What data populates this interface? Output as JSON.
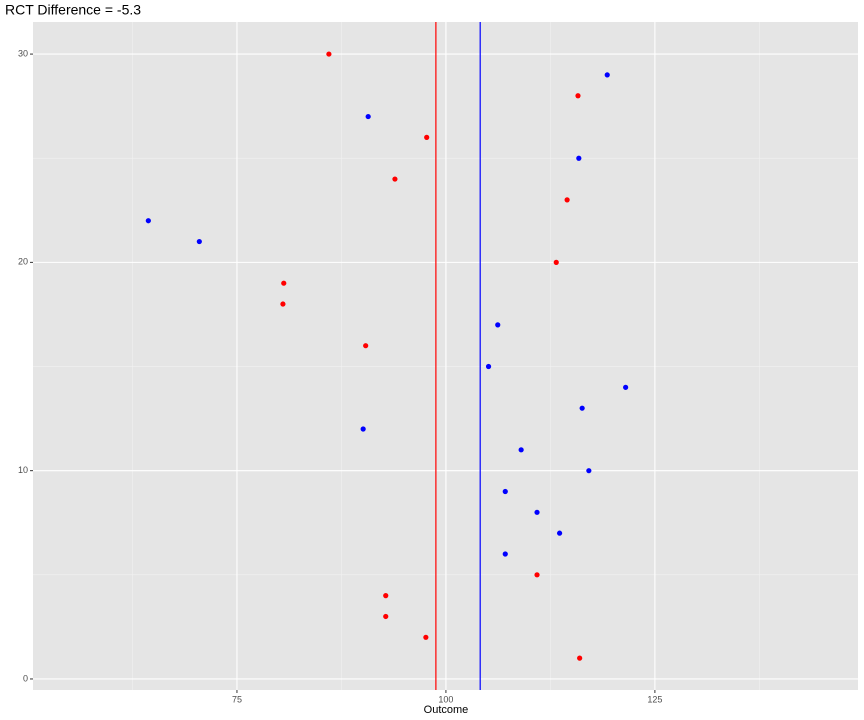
{
  "chart_data": {
    "type": "scatter",
    "title": "RCT Difference = -5.3",
    "x_label": "Outcome",
    "xlim": [
      50.6,
      149.3
    ],
    "ylim": [
      -0.53,
      31.54
    ],
    "xticks": [
      75,
      100,
      125
    ],
    "yticks": [
      0,
      10,
      20,
      30
    ],
    "x_minor_ticks": [
      62.5,
      87.5,
      112.5,
      137.5
    ],
    "y_minor_ticks": [
      5,
      15,
      25
    ],
    "grid": true,
    "series": [
      {
        "color": "#ff0000",
        "x": [
          116.0,
          97.6,
          92.8,
          92.8,
          110.9,
          90.4,
          80.5,
          80.6,
          113.2,
          114.5,
          93.9,
          97.7,
          115.8,
          86.0
        ],
        "y": [
          1,
          2,
          3,
          4,
          5,
          16,
          18,
          19,
          20,
          23,
          24,
          26,
          28,
          30
        ]
      },
      {
        "color": "#0000ff",
        "x": [
          107.1,
          113.6,
          110.9,
          107.1,
          117.1,
          109.0,
          90.1,
          116.3,
          121.5,
          105.1,
          106.2,
          70.5,
          64.4,
          115.9,
          90.7,
          119.3
        ],
        "y": [
          6,
          7,
          8,
          9,
          10,
          11,
          12,
          13,
          14,
          15,
          17,
          21,
          22,
          25,
          27,
          29
        ]
      }
    ],
    "vlines": [
      {
        "value": 98.8,
        "color": "#ff0000"
      },
      {
        "value": 104.1,
        "color": "#0000ff"
      }
    ]
  }
}
